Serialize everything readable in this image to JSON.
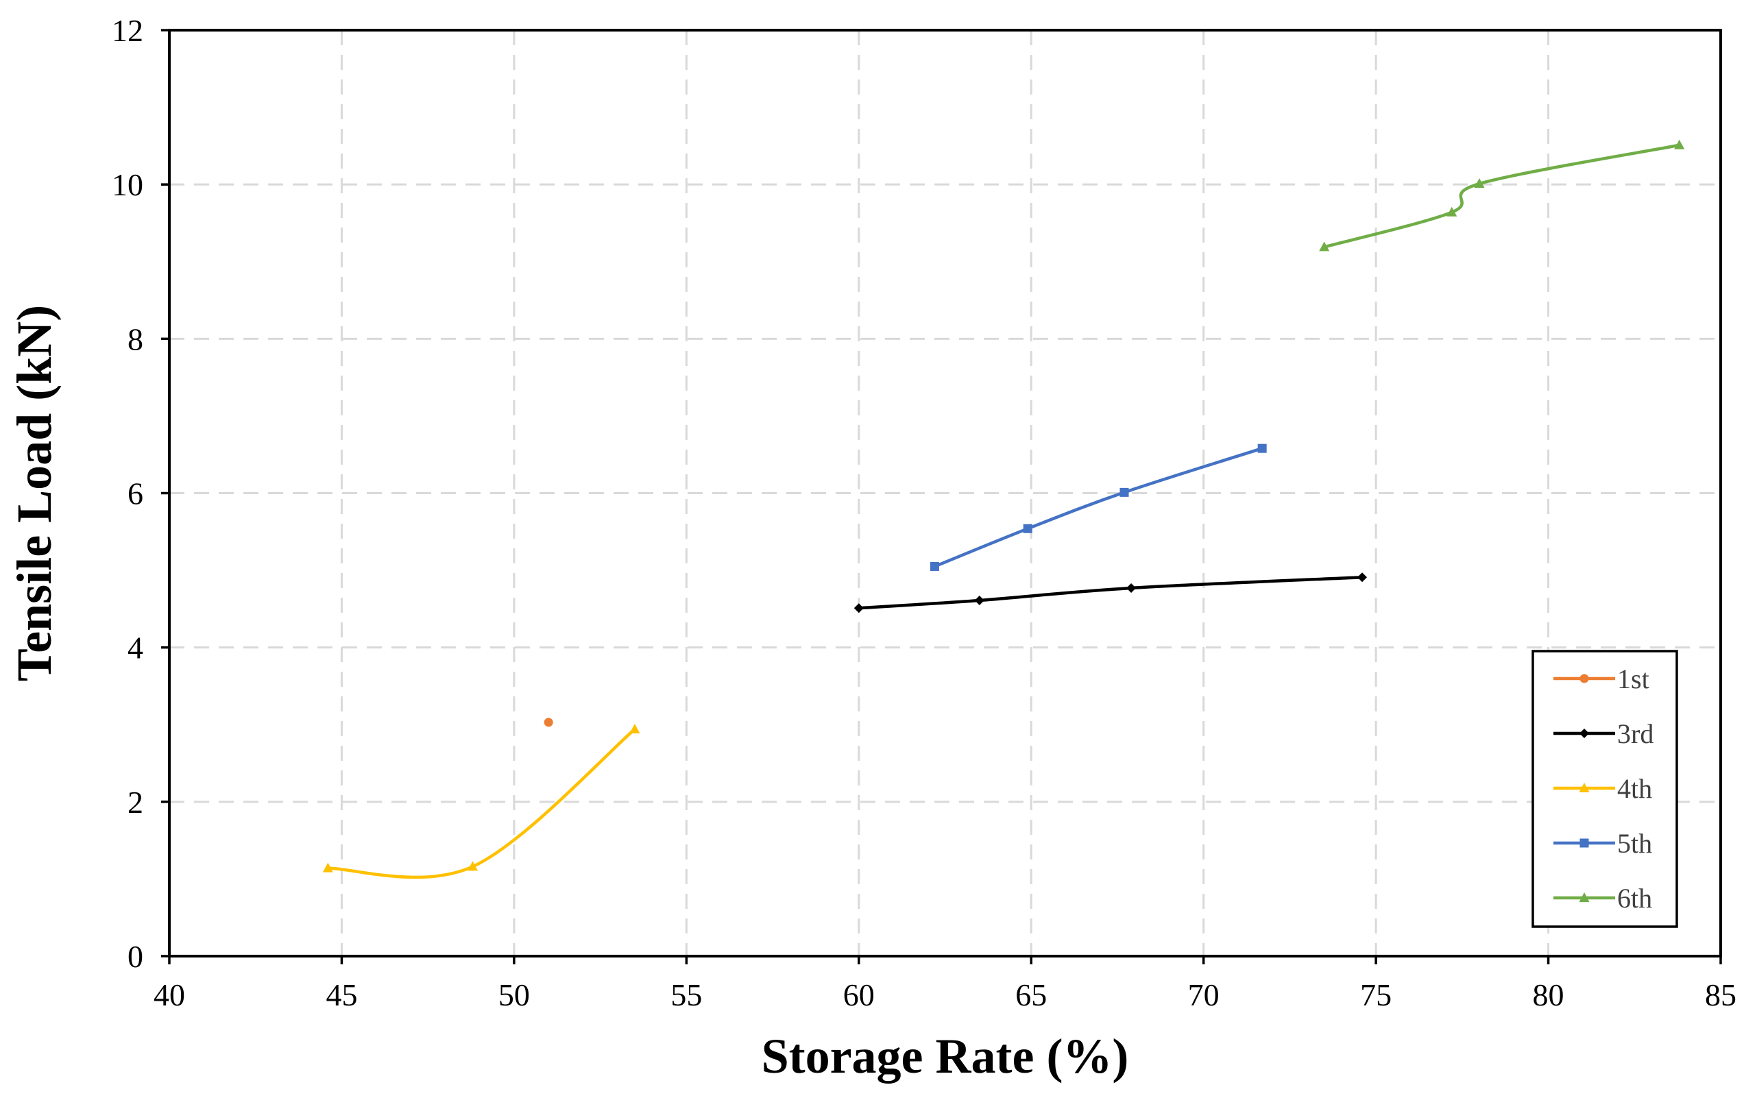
{
  "chart_data": {
    "type": "line",
    "title": "",
    "xlabel": "Storage Rate (%)",
    "ylabel": "Tensile Load (kN)",
    "xlim": [
      40,
      85
    ],
    "ylim": [
      0,
      12
    ],
    "xticks": [
      40,
      45,
      50,
      55,
      60,
      65,
      70,
      75,
      80,
      85
    ],
    "yticks": [
      0,
      2,
      4,
      6,
      8,
      10,
      12
    ],
    "grid": true,
    "smooth": true,
    "legend_position": "bottom-right",
    "series": [
      {
        "name": "1st",
        "color": "#ED7D31",
        "marker": "circle",
        "points": [
          [
            51.0,
            3.03
          ]
        ]
      },
      {
        "name": "3rd",
        "color": "#000000",
        "marker": "diamond",
        "points": [
          [
            60.0,
            4.51
          ],
          [
            63.5,
            4.61
          ],
          [
            67.9,
            4.77
          ],
          [
            74.6,
            4.91
          ]
        ]
      },
      {
        "name": "4th",
        "color": "#FFC000",
        "marker": "triangle",
        "points": [
          [
            44.6,
            1.14
          ],
          [
            48.8,
            1.16
          ],
          [
            53.5,
            2.94
          ]
        ]
      },
      {
        "name": "5th",
        "color": "#4472C4",
        "marker": "square",
        "points": [
          [
            62.2,
            5.05
          ],
          [
            64.9,
            5.54
          ],
          [
            67.7,
            6.01
          ],
          [
            71.7,
            6.58
          ]
        ]
      },
      {
        "name": "6th",
        "color": "#70AD47",
        "marker": "triangle",
        "points": [
          [
            73.5,
            9.19
          ],
          [
            77.2,
            9.64
          ],
          [
            78.0,
            10.01
          ],
          [
            83.8,
            10.51
          ]
        ]
      }
    ]
  }
}
